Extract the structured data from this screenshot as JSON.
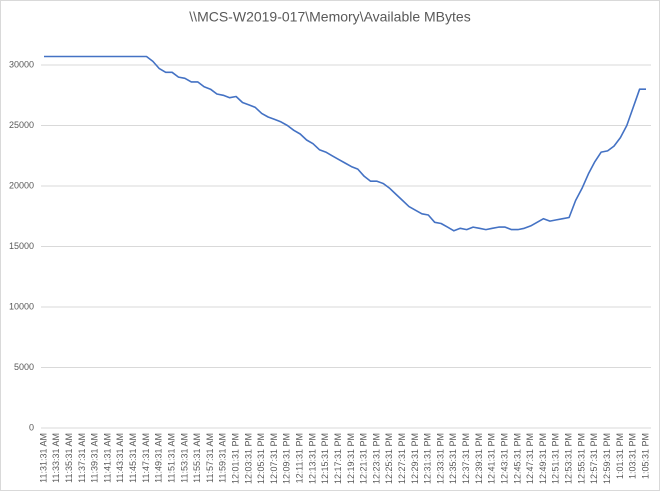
{
  "chart_data": {
    "type": "line",
    "title": "\\\\MCS-W2019-017\\Memory\\Available MBytes",
    "categories": [
      "11:31:31 AM",
      null,
      "11:33:31 AM",
      null,
      "11:35:31 AM",
      null,
      "11:37:31 AM",
      null,
      "11:39:31 AM",
      null,
      "11:41:31 AM",
      null,
      "11:43:31 AM",
      null,
      "11:45:31 AM",
      null,
      "11:47:31 AM",
      null,
      "11:49:31 AM",
      null,
      "11:51:31 AM",
      null,
      "11:53:31 AM",
      null,
      "11:55:31 AM",
      null,
      "11:57:31 AM",
      null,
      "11:59:31 AM",
      null,
      "12:01:31 PM",
      null,
      "12:03:31 PM",
      null,
      "12:05:31 PM",
      null,
      "12:07:31 PM",
      null,
      "12:09:31 PM",
      null,
      "12:11:31 PM",
      null,
      "12:13:31 PM",
      null,
      "12:15:31 PM",
      null,
      "12:17:31 PM",
      null,
      "12:19:31 PM",
      null,
      "12:21:31 PM",
      null,
      "12:23:31 PM",
      null,
      "12:25:31 PM",
      null,
      "12:27:31 PM",
      null,
      "12:29:31 PM",
      null,
      "12:31:31 PM",
      null,
      "12:33:31 PM",
      null,
      "12:35:31 PM",
      null,
      "12:37:31 PM",
      null,
      "12:39:31 PM",
      null,
      "12:41:31 PM",
      null,
      "12:43:31 PM",
      null,
      "12:45:31 PM",
      null,
      "12:47:31 PM",
      null,
      "12:49:31 PM",
      null,
      "12:51:31 PM",
      null,
      "12:53:31 PM",
      null,
      "12:55:31 PM",
      null,
      "12:57:31 PM",
      null,
      "12:59:31 PM",
      null,
      "1:01:31 PM",
      null,
      "1:03:31 PM",
      null,
      "1:05:31 PM"
    ],
    "values": [
      30700,
      30700,
      30700,
      30700,
      30700,
      30700,
      30700,
      30700,
      30700,
      30700,
      30700,
      30700,
      30700,
      30700,
      30700,
      30700,
      30700,
      30300,
      29700,
      29400,
      29400,
      29000,
      28900,
      28600,
      28600,
      28200,
      28000,
      27600,
      27500,
      27300,
      27400,
      26900,
      26700,
      26500,
      26000,
      25700,
      25500,
      25300,
      25000,
      24600,
      24300,
      23800,
      23500,
      23000,
      22800,
      22500,
      22200,
      21900,
      21600,
      21400,
      20800,
      20400,
      20400,
      20200,
      19800,
      19300,
      18800,
      18300,
      18000,
      17700,
      17600,
      17000,
      16900,
      16600,
      16300,
      16500,
      16400,
      16600,
      16500,
      16400,
      16500,
      16600,
      16600,
      16400,
      16400,
      16500,
      16700,
      17000,
      17300,
      17100,
      17200,
      17300,
      17400,
      18800,
      19800,
      21000,
      22000,
      22800,
      22900,
      23300,
      24000,
      25000,
      26500,
      28000,
      28000
    ],
    "color": "#4472c4",
    "ylim": [
      0,
      32000
    ],
    "yticks": [
      0,
      5000,
      10000,
      15000,
      20000,
      25000,
      30000
    ],
    "grid": true
  }
}
